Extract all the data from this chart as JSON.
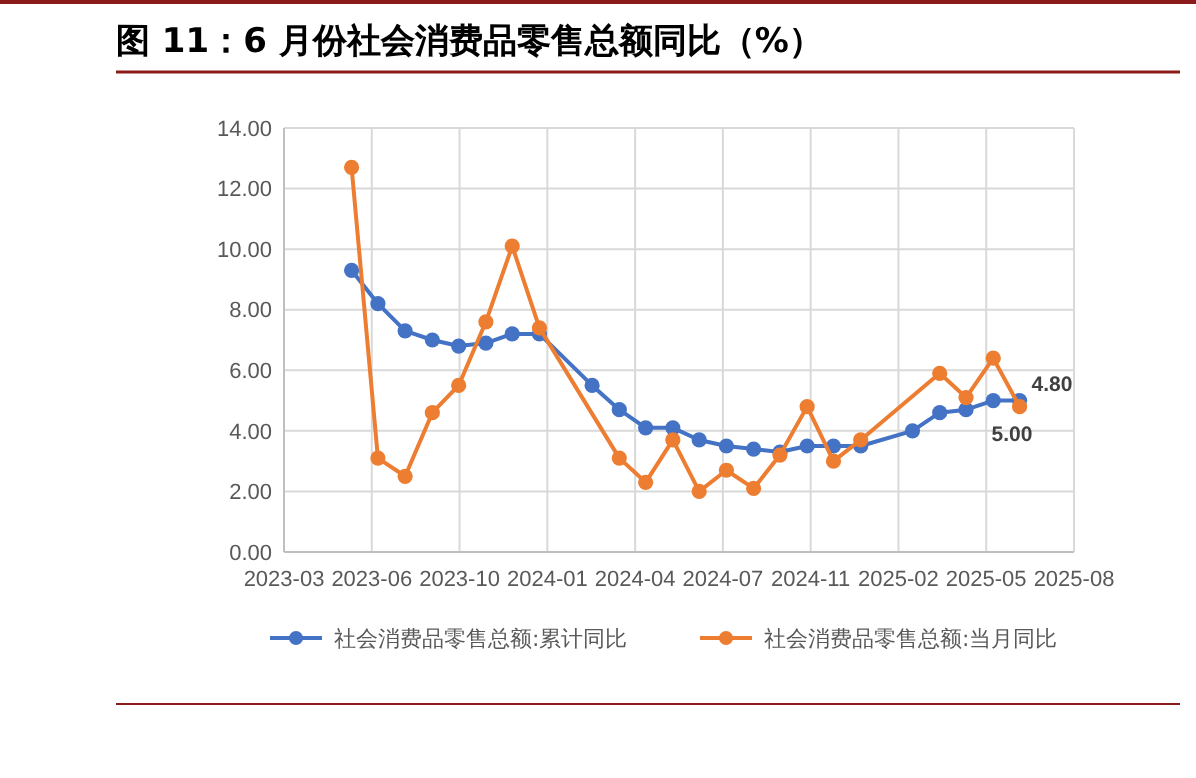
{
  "chart_data": {
    "type": "line",
    "title": "图 11：6 月份社会消费品零售总额同比（%）",
    "x": [
      "2023-05-31",
      "2023-06-30",
      "2023-07-31",
      "2023-08-31",
      "2023-09-30",
      "2023-10-31",
      "2023-11-30",
      "2023-12-31",
      "2024-02-29",
      "2024-03-31",
      "2024-04-30",
      "2024-05-31",
      "2024-06-30",
      "2024-07-31",
      "2024-08-31",
      "2024-09-30",
      "2024-10-31",
      "2024-11-30",
      "2024-12-31",
      "2025-02-28",
      "2025-03-31",
      "2025-04-30",
      "2025-05-31",
      "2025-06-30"
    ],
    "series": [
      {
        "name": "社会消费品零售总额:累计同比",
        "color": "#4472c4",
        "values": [
          9.3,
          8.2,
          7.3,
          7.0,
          6.8,
          6.9,
          7.2,
          7.2,
          5.5,
          4.7,
          4.1,
          4.1,
          3.7,
          3.5,
          3.4,
          3.3,
          3.5,
          3.5,
          3.5,
          4.0,
          4.6,
          4.7,
          5.0,
          5.0
        ],
        "value_labels": [
          null,
          null,
          null,
          null,
          null,
          null,
          null,
          null,
          null,
          null,
          null,
          null,
          null,
          null,
          null,
          null,
          null,
          null,
          null,
          null,
          null,
          null,
          null,
          "5.00"
        ]
      },
      {
        "name": "社会消费品零售总额:当月同比",
        "color": "#ed7d31",
        "values": [
          12.7,
          3.1,
          2.5,
          4.6,
          5.5,
          7.6,
          10.1,
          7.4,
          null,
          3.1,
          2.3,
          3.7,
          2.0,
          2.7,
          2.1,
          3.2,
          4.8,
          3.0,
          3.7,
          null,
          5.9,
          5.1,
          6.4,
          4.8
        ],
        "value_labels": [
          null,
          null,
          null,
          null,
          null,
          null,
          null,
          null,
          null,
          null,
          null,
          null,
          null,
          null,
          null,
          null,
          null,
          null,
          null,
          null,
          null,
          null,
          null,
          "4.80"
        ]
      }
    ],
    "xlim": [
      "2023-03-15",
      "2025-08-31"
    ],
    "xticks": [
      {
        "value": "2023-03-15",
        "label": "2023-03"
      },
      {
        "value": "2023-06-23",
        "label": "2023-06"
      },
      {
        "value": "2023-10-01",
        "label": "2023-10"
      },
      {
        "value": "2024-01-09",
        "label": "2024-01"
      },
      {
        "value": "2024-04-18",
        "label": "2024-04"
      },
      {
        "value": "2024-07-27",
        "label": "2024-07"
      },
      {
        "value": "2024-11-04",
        "label": "2024-11"
      },
      {
        "value": "2025-02-12",
        "label": "2025-02"
      },
      {
        "value": "2025-05-23",
        "label": "2025-05"
      },
      {
        "value": "2025-08-31",
        "label": "2025-08"
      }
    ],
    "ylim": [
      0,
      14
    ],
    "yticks": [
      {
        "value": 0,
        "label": "0.00"
      },
      {
        "value": 2,
        "label": "2.00"
      },
      {
        "value": 4,
        "label": "4.00"
      },
      {
        "value": 6,
        "label": "6.00"
      },
      {
        "value": 8,
        "label": "8.00"
      },
      {
        "value": 10,
        "label": "10.00"
      },
      {
        "value": 12,
        "label": "12.00"
      },
      {
        "value": 14,
        "label": "14.00"
      }
    ],
    "grid": true,
    "legend": "bottom",
    "marker": "circle",
    "line_style": "solid"
  }
}
